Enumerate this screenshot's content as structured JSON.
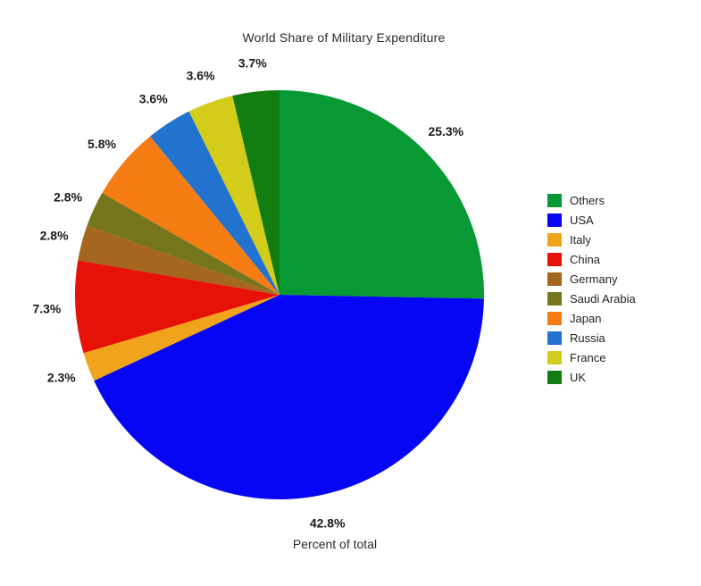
{
  "chart_data": {
    "type": "pie",
    "title": "World Share of Military Expenditure",
    "xlabel": "Percent of total",
    "labels": [
      "Others",
      "USA",
      "Italy",
      "China",
      "Germany",
      "Saudi Arabia",
      "Japan",
      "Russia",
      "France",
      "UK"
    ],
    "values": [
      25.3,
      42.8,
      2.3,
      7.3,
      2.8,
      2.8,
      5.8,
      3.6,
      3.6,
      3.7
    ],
    "value_labels": [
      "25.3%",
      "42.8%",
      "2.3%",
      "7.3%",
      "2.8%",
      "2.8%",
      "5.8%",
      "3.6%",
      "3.6%",
      "3.7%"
    ],
    "colors": [
      "#079a34",
      "#0606f5",
      "#f0a41c",
      "#e61208",
      "#a5661f",
      "#75751c",
      "#f57d14",
      "#2272cf",
      "#d4cc1a",
      "#117d11"
    ],
    "start_angle": 90,
    "direction": "clockwise",
    "label_distance": 1.14,
    "legend_position": "right",
    "background": "#ffffff"
  }
}
